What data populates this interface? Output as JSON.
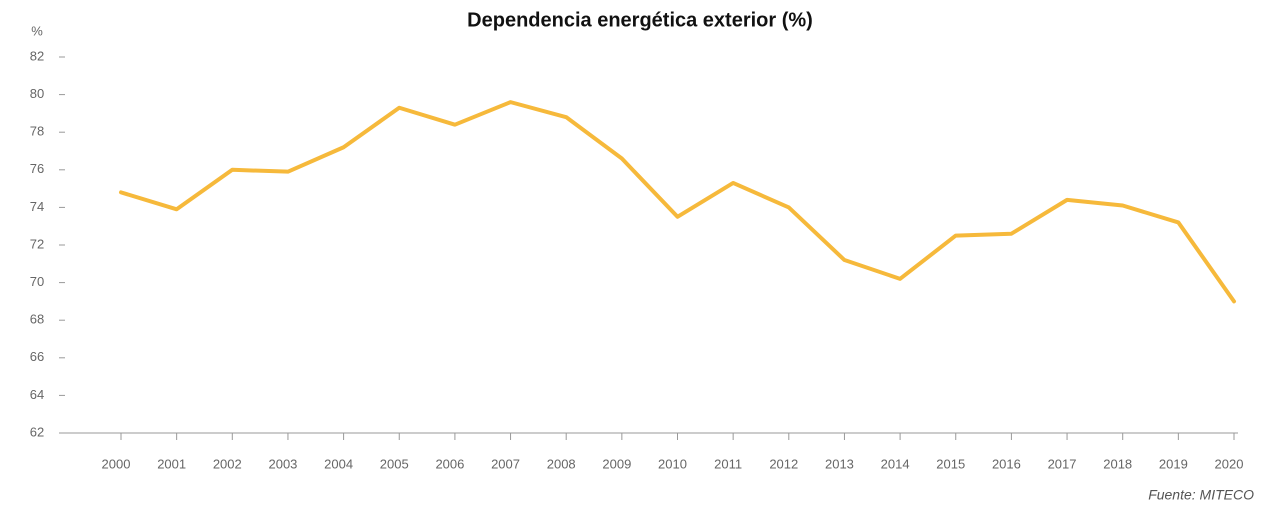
{
  "chart_data": {
    "type": "line",
    "title": "Dependencia energética exterior (%)",
    "y_label": "%",
    "source": "Fuente: MITECO",
    "categories": [
      "2000",
      "2001",
      "2002",
      "2003",
      "2004",
      "2005",
      "2006",
      "2007",
      "2008",
      "2009",
      "2010",
      "2011",
      "2012",
      "2013",
      "2014",
      "2015",
      "2016",
      "2017",
      "2018",
      "2019",
      "2020"
    ],
    "series": [
      {
        "name": "Dependencia energética exterior",
        "color": "#f6b93b",
        "values": [
          74.8,
          73.9,
          76.0,
          75.9,
          77.2,
          79.3,
          78.4,
          79.6,
          78.8,
          76.6,
          73.5,
          75.3,
          74.0,
          71.2,
          70.2,
          72.5,
          72.6,
          74.4,
          74.1,
          73.2,
          69.0
        ]
      }
    ],
    "ylim": [
      62,
      82
    ],
    "yticks": [
      62,
      64,
      66,
      68,
      70,
      72,
      74,
      76,
      78,
      80,
      82
    ],
    "grid": false
  }
}
